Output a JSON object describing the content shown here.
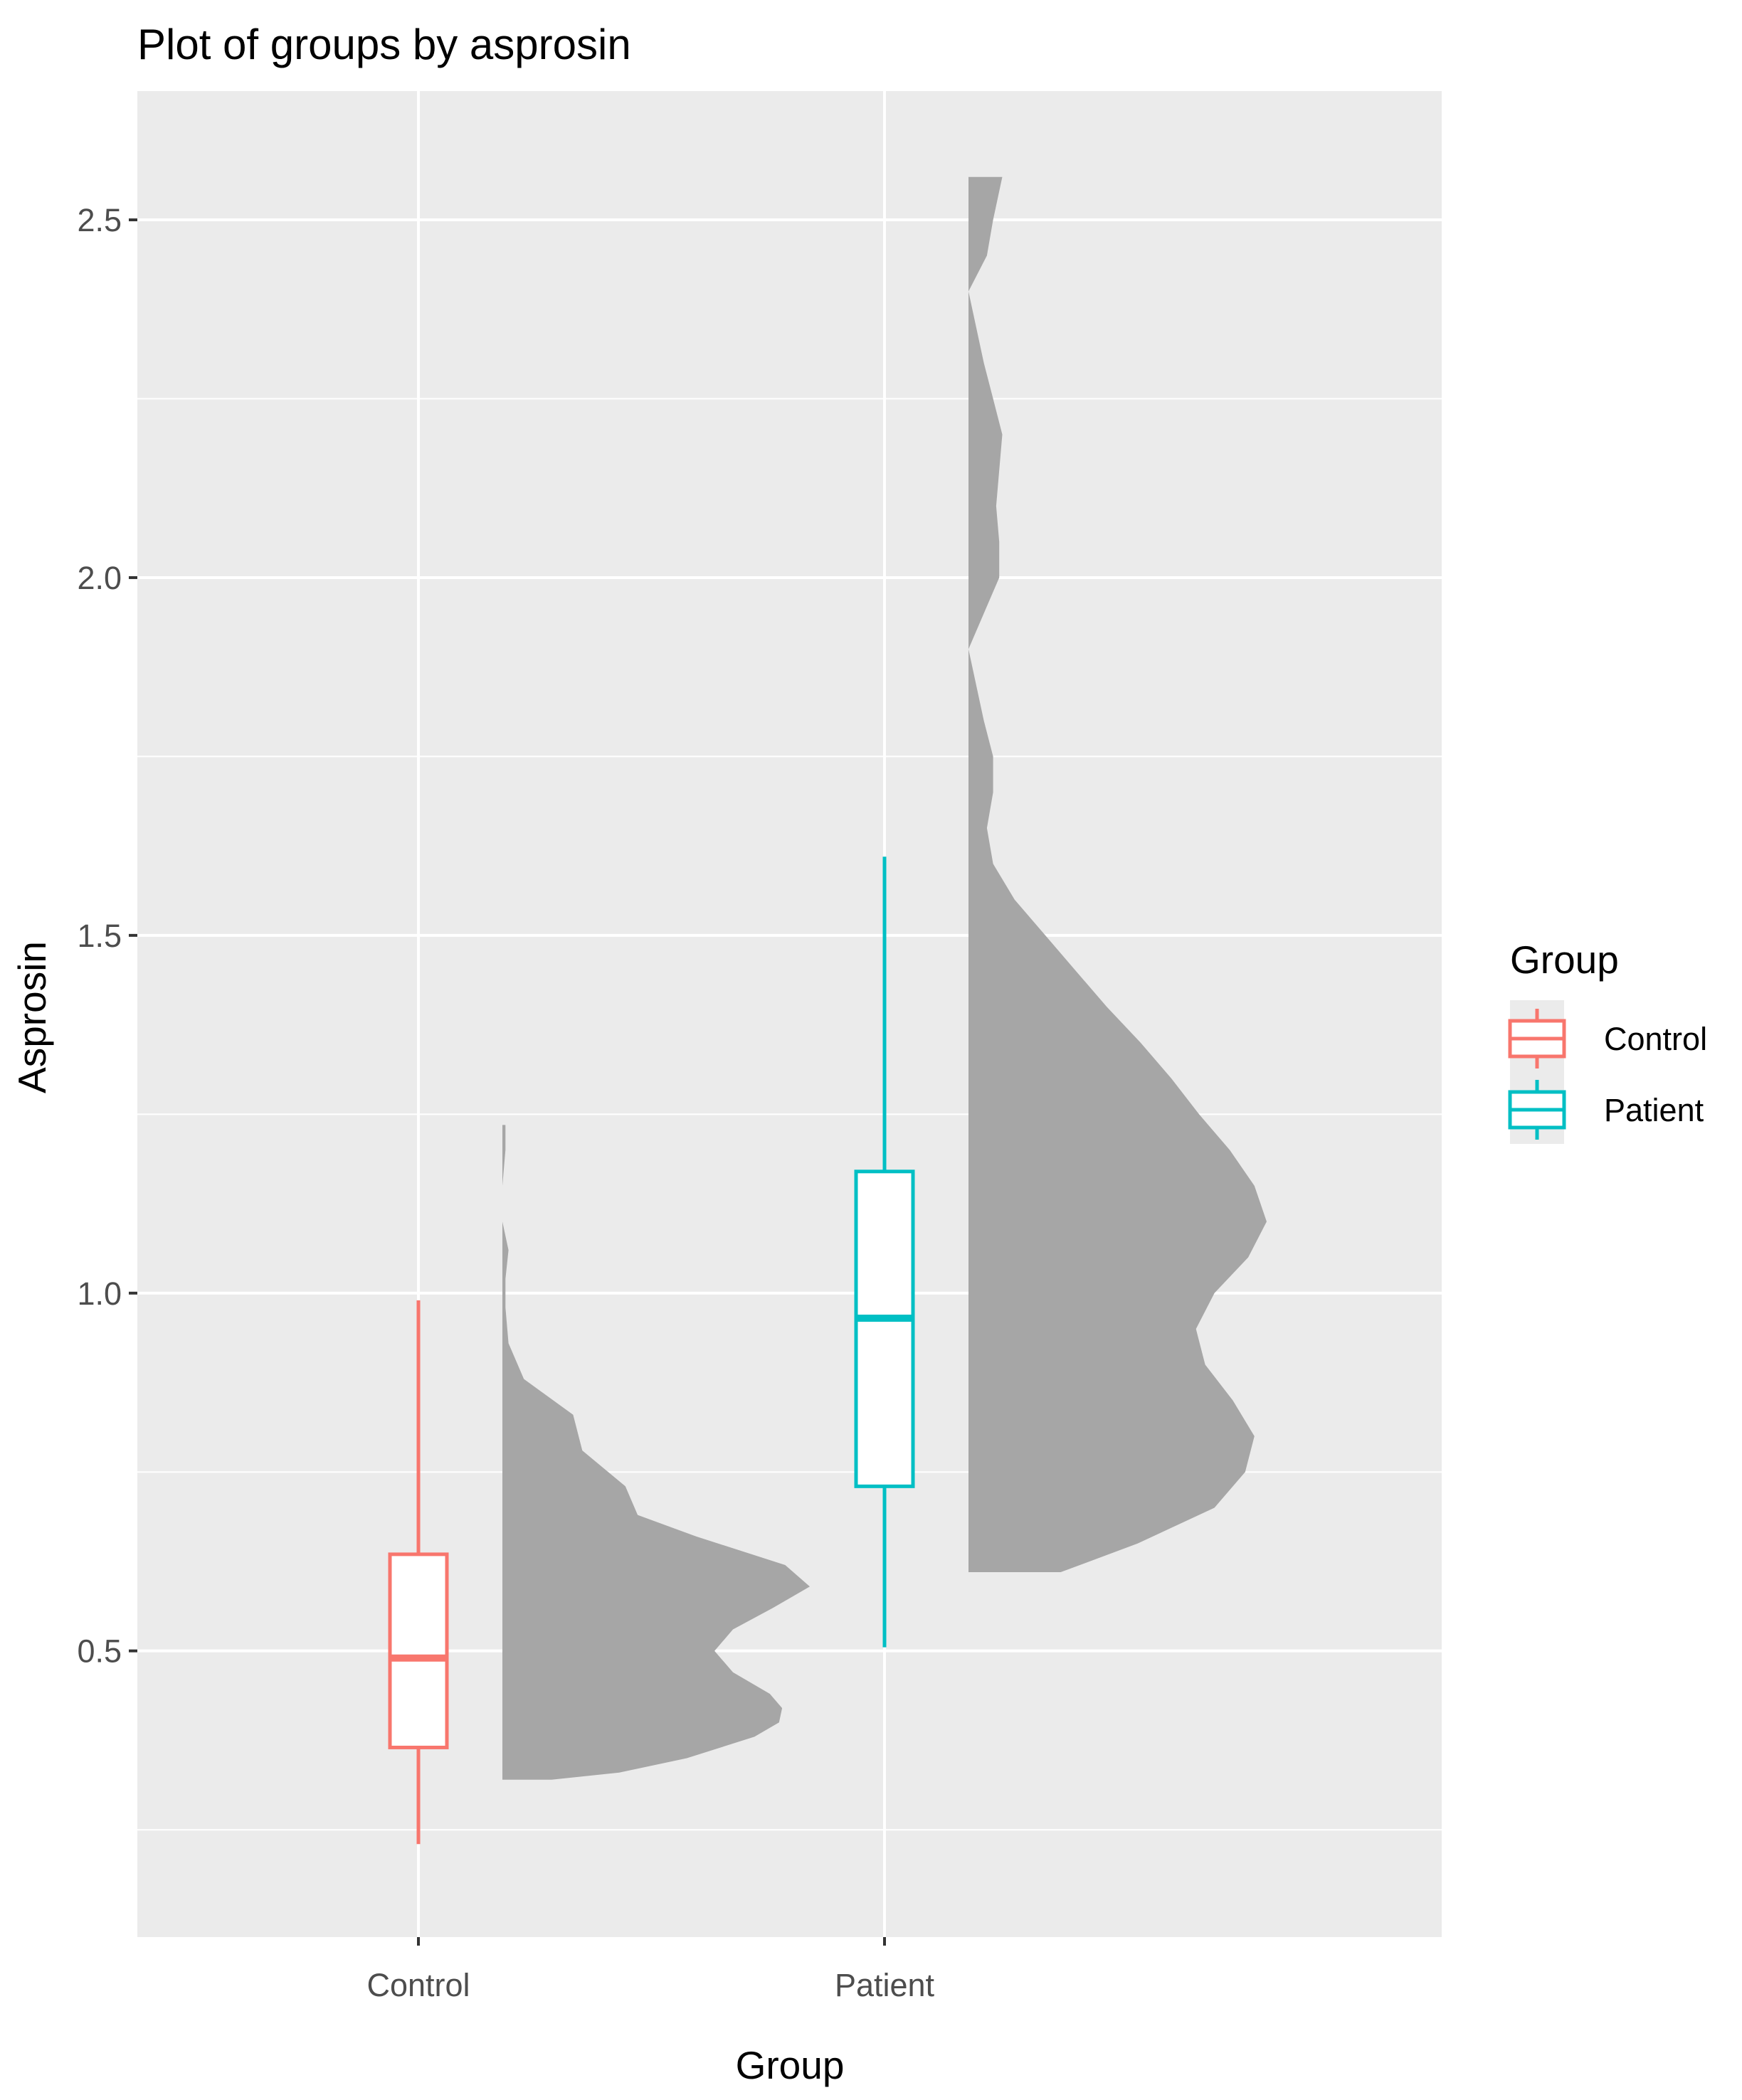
{
  "chart_data": {
    "type": "boxplot-halfviolin",
    "title": "Plot of groups by asprosin",
    "xlabel": "Group",
    "ylabel": "Asprosin",
    "categories": [
      "Control",
      "Patient"
    ],
    "ylim": [
      0.1,
      2.68
    ],
    "yticks": [
      "0.5",
      "1.0",
      "1.5",
      "2.0",
      "2.5"
    ],
    "ytick_values": [
      0.5,
      1.0,
      1.5,
      2.0,
      2.5
    ],
    "minor_ytick_values": [
      0.25,
      0.75,
      1.25,
      1.75,
      2.25
    ],
    "grid": true,
    "legend": {
      "title": "Group",
      "position": "right",
      "entries": [
        {
          "label": "Control",
          "color": "#F8766D"
        },
        {
          "label": "Patient",
          "color": "#00BFC4"
        }
      ]
    },
    "series": [
      {
        "name": "Control",
        "color": "#F8766D",
        "box": {
          "whisker_low": 0.23,
          "q1": 0.365,
          "median": 0.49,
          "q3": 0.635,
          "whisker_high": 0.99
        },
        "violin": {
          "ymin": 0.32,
          "ymax": 1.235,
          "density": [
            [
              0.32,
              0.16
            ],
            [
              0.33,
              0.38
            ],
            [
              0.35,
              0.6
            ],
            [
              0.38,
              0.82
            ],
            [
              0.4,
              0.9
            ],
            [
              0.42,
              0.91
            ],
            [
              0.44,
              0.87
            ],
            [
              0.47,
              0.75
            ],
            [
              0.5,
              0.69
            ],
            [
              0.53,
              0.75
            ],
            [
              0.56,
              0.88
            ],
            [
              0.59,
              1.0
            ],
            [
              0.62,
              0.92
            ],
            [
              0.66,
              0.63
            ],
            [
              0.69,
              0.44
            ],
            [
              0.73,
              0.4
            ],
            [
              0.78,
              0.26
            ],
            [
              0.83,
              0.23
            ],
            [
              0.88,
              0.07
            ],
            [
              0.93,
              0.02
            ],
            [
              0.98,
              0.01
            ],
            [
              1.02,
              0.01
            ],
            [
              1.06,
              0.02
            ],
            [
              1.1,
              0.0
            ],
            [
              1.15,
              0.0
            ],
            [
              1.2,
              0.01
            ],
            [
              1.235,
              0.01
            ]
          ]
        }
      },
      {
        "name": "Patient",
        "color": "#00BFC4",
        "box": {
          "whisker_low": 0.505,
          "q1": 0.73,
          "median": 0.965,
          "q3": 1.17,
          "whisker_high": 1.61
        },
        "violin": {
          "ymin": 0.61,
          "ymax": 2.56,
          "density": [
            [
              0.61,
              0.3
            ],
            [
              0.65,
              0.55
            ],
            [
              0.7,
              0.8
            ],
            [
              0.75,
              0.9
            ],
            [
              0.8,
              0.93
            ],
            [
              0.85,
              0.86
            ],
            [
              0.9,
              0.77
            ],
            [
              0.95,
              0.74
            ],
            [
              1.0,
              0.8
            ],
            [
              1.05,
              0.91
            ],
            [
              1.1,
              0.97
            ],
            [
              1.15,
              0.93
            ],
            [
              1.2,
              0.85
            ],
            [
              1.25,
              0.75
            ],
            [
              1.3,
              0.66
            ],
            [
              1.35,
              0.56
            ],
            [
              1.4,
              0.45
            ],
            [
              1.45,
              0.35
            ],
            [
              1.5,
              0.25
            ],
            [
              1.55,
              0.15
            ],
            [
              1.6,
              0.08
            ],
            [
              1.65,
              0.06
            ],
            [
              1.7,
              0.08
            ],
            [
              1.75,
              0.08
            ],
            [
              1.8,
              0.05
            ],
            [
              1.9,
              0.0
            ],
            [
              2.0,
              0.1
            ],
            [
              2.05,
              0.1
            ],
            [
              2.1,
              0.09
            ],
            [
              2.15,
              0.1
            ],
            [
              2.2,
              0.11
            ],
            [
              2.25,
              0.08
            ],
            [
              2.3,
              0.05
            ],
            [
              2.4,
              0.0
            ],
            [
              2.45,
              0.06
            ],
            [
              2.5,
              0.08
            ],
            [
              2.56,
              0.11
            ]
          ]
        }
      }
    ]
  }
}
